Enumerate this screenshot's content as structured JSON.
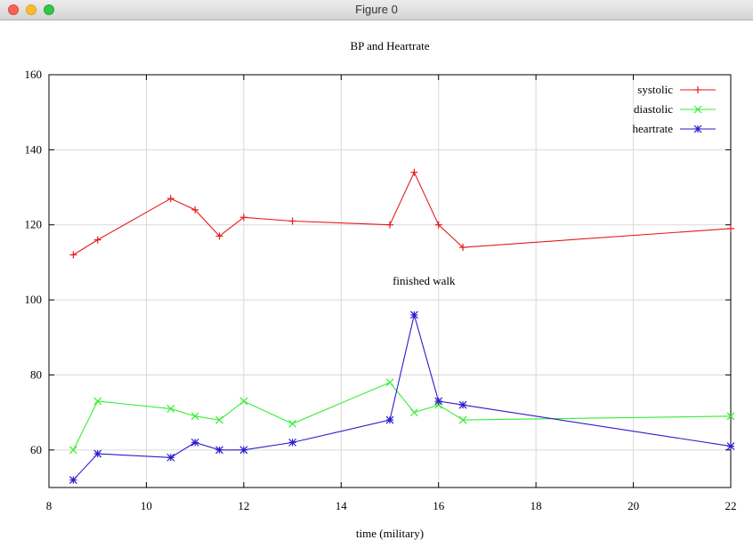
{
  "window": {
    "title": "Figure 0"
  },
  "chart_data": {
    "type": "line",
    "title": "BP and Heartrate",
    "xlabel": "time (military)",
    "ylabel": "",
    "xlim": [
      8,
      22
    ],
    "ylim": [
      50,
      160
    ],
    "grid": true,
    "legend": "top-right",
    "x_ticks": [
      "8",
      "10",
      "12",
      "14",
      "16",
      "18",
      "20",
      "22"
    ],
    "y_ticks": [
      "60",
      "80",
      "100",
      "120",
      "140",
      "160"
    ],
    "x_tick_values": [
      8,
      10,
      12,
      14,
      16,
      18,
      20,
      22
    ],
    "y_tick_values": [
      60,
      80,
      100,
      120,
      140,
      160
    ],
    "annotations": [
      {
        "text": "finished walk",
        "x": 15.7,
        "y": 104
      }
    ],
    "series": [
      {
        "name": "systolic",
        "color": "#e41a1c",
        "marker": "plus",
        "x": [
          8.5,
          9,
          10.5,
          11,
          11.5,
          12,
          13,
          15,
          15.5,
          16,
          16.5,
          22
        ],
        "y": [
          112,
          116,
          127,
          124,
          117,
          122,
          121,
          120,
          134,
          120,
          114,
          119
        ]
      },
      {
        "name": "diastolic",
        "color": "#33ee33",
        "marker": "x",
        "x": [
          8.5,
          9,
          10.5,
          11,
          11.5,
          12,
          13,
          15,
          15.5,
          16,
          16.5,
          22
        ],
        "y": [
          60,
          73,
          71,
          69,
          68,
          73,
          67,
          78,
          70,
          72,
          68,
          69
        ]
      },
      {
        "name": "heartrate",
        "color": "#2a1acc",
        "marker": "star",
        "x": [
          8.5,
          9,
          10.5,
          11,
          11.5,
          12,
          13,
          15,
          15.5,
          16,
          16.5,
          22
        ],
        "y": [
          52,
          59,
          58,
          62,
          60,
          60,
          62,
          68,
          96,
          73,
          72,
          61
        ]
      }
    ]
  }
}
